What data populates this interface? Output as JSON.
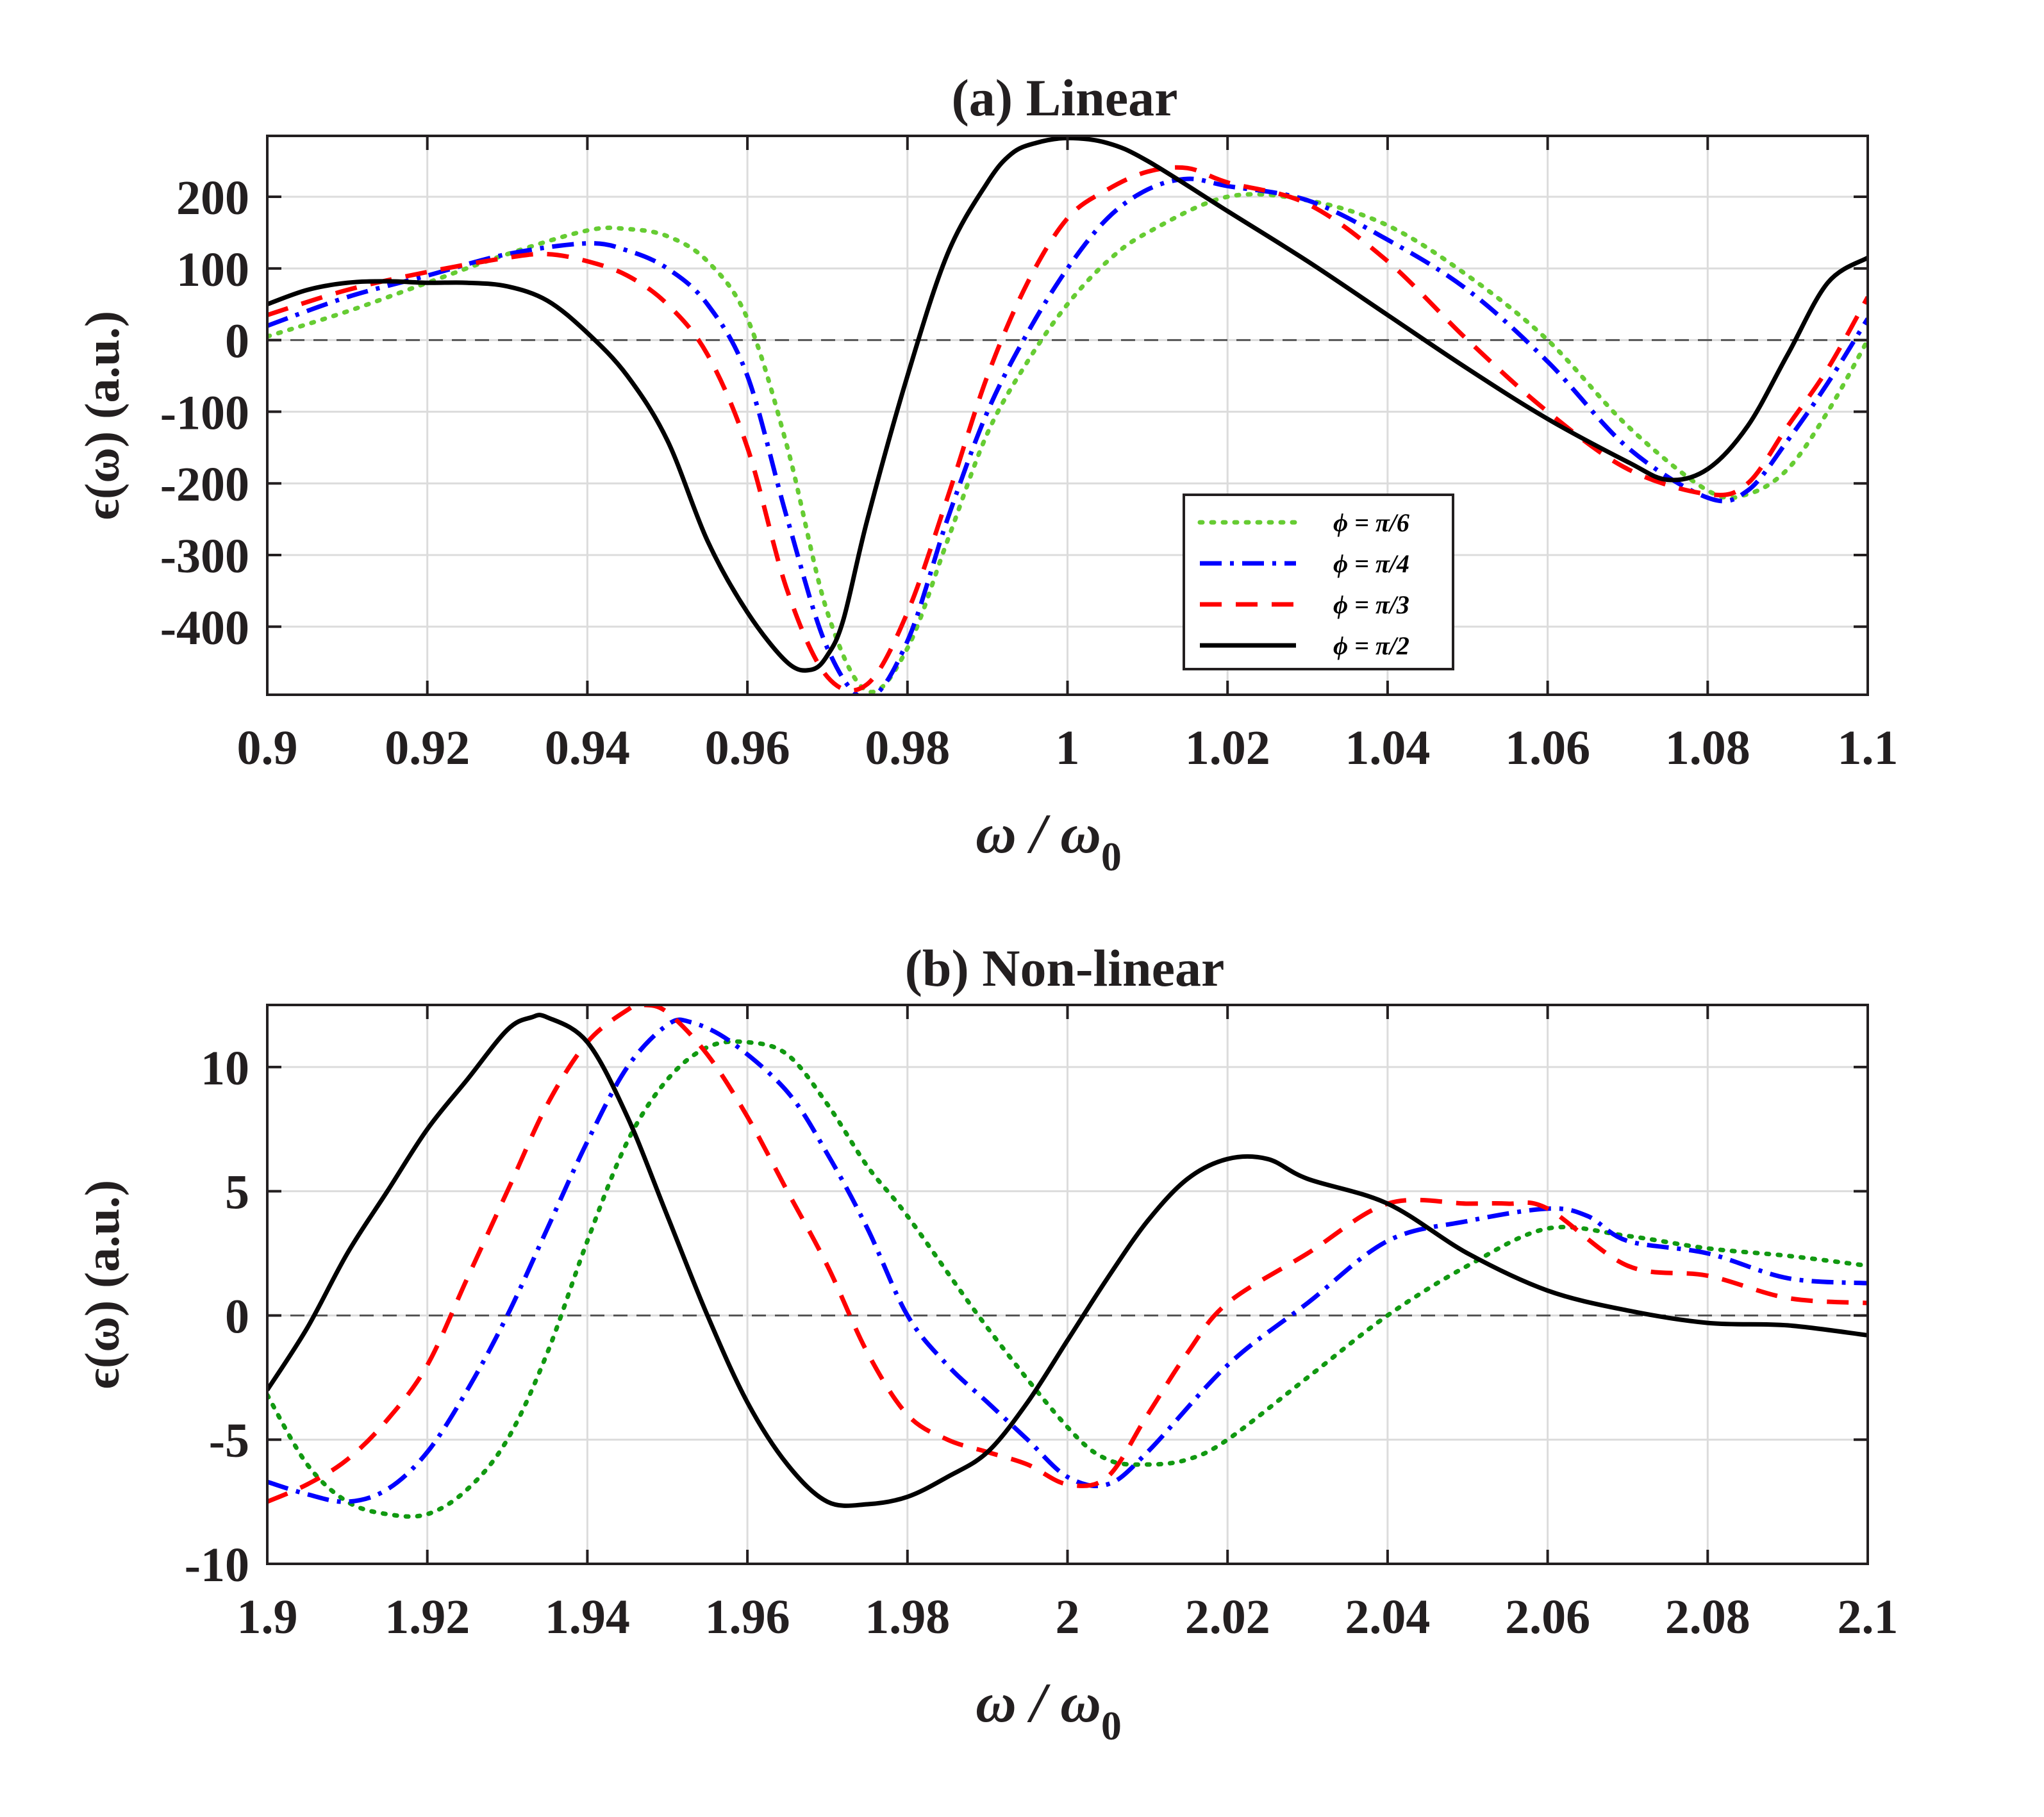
{
  "chart_data": [
    {
      "type": "line",
      "panel": "a",
      "title": "(a) Linear",
      "xlabel_main": "ω / ω",
      "xlabel_sub": "0",
      "ylabel": "ϵ(ω) (a.u.)",
      "xlim": [
        0.9,
        1.1
      ],
      "ylim": [
        -495,
        285
      ],
      "xticks": [
        0.9,
        0.92,
        0.94,
        0.96,
        0.98,
        1.0,
        1.02,
        1.04,
        1.06,
        1.08,
        1.1
      ],
      "xtick_labels": [
        "0.9",
        "0.92",
        "0.94",
        "0.96",
        "0.98",
        "1",
        "1.02",
        "1.04",
        "1.06",
        "1.08",
        "1.1"
      ],
      "yticks": [
        -400,
        -300,
        -200,
        -100,
        0,
        100,
        200
      ],
      "ytick_labels": [
        "-400",
        "-300",
        "-200",
        "-100",
        "0",
        "100",
        "200"
      ],
      "grid": true,
      "zero_line": true,
      "legend": {
        "position": "lower-right",
        "entries": [
          "ϕ = π/6",
          "ϕ = π/4",
          "ϕ = π/3",
          "ϕ = π/2"
        ]
      },
      "series": [
        {
          "name": "ϕ = π/6",
          "color": "#66cc33",
          "style": "dotted",
          "x": [
            0.9,
            0.91,
            0.92,
            0.93,
            0.94,
            0.945,
            0.95,
            0.955,
            0.96,
            0.965,
            0.97,
            0.975,
            0.98,
            0.985,
            0.99,
            0.995,
            1.0,
            1.005,
            1.01,
            1.02,
            1.03,
            1.04,
            1.05,
            1.06,
            1.07,
            1.08,
            1.085,
            1.09,
            1.095,
            1.1
          ],
          "y": [
            5,
            40,
            80,
            120,
            153,
            155,
            145,
            110,
            30,
            -150,
            -380,
            -490,
            -430,
            -280,
            -130,
            -30,
            50,
            110,
            150,
            200,
            195,
            160,
            90,
            0,
            -120,
            -210,
            -215,
            -180,
            -100,
            0
          ]
        },
        {
          "name": "ϕ = π/4",
          "color": "#0000ff",
          "style": "dashdot",
          "x": [
            0.9,
            0.91,
            0.92,
            0.93,
            0.94,
            0.945,
            0.95,
            0.955,
            0.96,
            0.965,
            0.97,
            0.975,
            0.98,
            0.985,
            0.99,
            0.995,
            1.0,
            1.005,
            1.01,
            1.015,
            1.02,
            1.03,
            1.04,
            1.05,
            1.06,
            1.07,
            1.08,
            1.085,
            1.09,
            1.095,
            1.1
          ],
          "y": [
            20,
            60,
            90,
            120,
            135,
            125,
            100,
            50,
            -50,
            -250,
            -430,
            -500,
            -420,
            -250,
            -100,
            10,
            100,
            170,
            210,
            225,
            215,
            195,
            140,
            70,
            -30,
            -150,
            -220,
            -210,
            -140,
            -60,
            30
          ]
        },
        {
          "name": "ϕ = π/3",
          "color": "#ff0000",
          "style": "dashed",
          "x": [
            0.9,
            0.91,
            0.92,
            0.93,
            0.935,
            0.94,
            0.945,
            0.95,
            0.955,
            0.96,
            0.965,
            0.97,
            0.975,
            0.98,
            0.985,
            0.99,
            0.995,
            1.0,
            1.005,
            1.01,
            1.015,
            1.02,
            1.03,
            1.04,
            1.05,
            1.06,
            1.07,
            1.08,
            1.085,
            1.09,
            1.095,
            1.1
          ],
          "y": [
            35,
            70,
            95,
            115,
            120,
            110,
            90,
            50,
            -20,
            -150,
            -350,
            -470,
            -480,
            -380,
            -220,
            -50,
            80,
            170,
            210,
            235,
            240,
            220,
            190,
            110,
            0,
            -100,
            -180,
            -215,
            -200,
            -120,
            -40,
            60
          ]
        },
        {
          "name": "ϕ = π/2",
          "color": "#000000",
          "style": "solid",
          "x": [
            0.9,
            0.905,
            0.91,
            0.915,
            0.92,
            0.925,
            0.93,
            0.935,
            0.94,
            0.945,
            0.95,
            0.955,
            0.96,
            0.965,
            0.968,
            0.97,
            0.972,
            0.975,
            0.98,
            0.985,
            0.99,
            0.993,
            0.996,
            1.0,
            1.005,
            1.01,
            1.02,
            1.03,
            1.04,
            1.05,
            1.06,
            1.07,
            1.075,
            1.08,
            1.085,
            1.09,
            1.095,
            1.1
          ],
          "y": [
            50,
            70,
            80,
            82,
            80,
            80,
            75,
            55,
            10,
            -50,
            -140,
            -280,
            -380,
            -450,
            -460,
            -440,
            -390,
            -250,
            -50,
            120,
            220,
            260,
            275,
            282,
            275,
            250,
            180,
            110,
            35,
            -40,
            -110,
            -170,
            -195,
            -180,
            -120,
            -20,
            80,
            115
          ]
        }
      ]
    },
    {
      "type": "line",
      "panel": "b",
      "title": "(b) Non-linear",
      "xlabel_main": "ω / ω",
      "xlabel_sub": "0",
      "ylabel": "ϵ(ω) (a.u.)",
      "xlim": [
        1.9,
        2.1
      ],
      "ylim": [
        -10,
        12.5
      ],
      "xticks": [
        1.9,
        1.92,
        1.94,
        1.96,
        1.98,
        2.0,
        2.02,
        2.04,
        2.06,
        2.08,
        2.1
      ],
      "xtick_labels": [
        "1.9",
        "1.92",
        "1.94",
        "1.96",
        "1.98",
        "2",
        "2.02",
        "2.04",
        "2.06",
        "2.08",
        "2.1"
      ],
      "yticks": [
        -10,
        -5,
        0,
        5,
        10
      ],
      "ytick_labels": [
        "-10",
        "-5",
        "0",
        "5",
        "10"
      ],
      "grid": true,
      "zero_line": true,
      "series": [
        {
          "name": "ϕ = π/6",
          "color": "#119911",
          "style": "dotted",
          "x": [
            1.9,
            1.905,
            1.91,
            1.915,
            1.92,
            1.925,
            1.93,
            1.935,
            1.94,
            1.945,
            1.95,
            1.955,
            1.96,
            1.965,
            1.97,
            1.975,
            1.98,
            1.99,
            2.0,
            2.005,
            2.01,
            2.015,
            2.02,
            2.03,
            2.04,
            2.05,
            2.06,
            2.07,
            2.08,
            2.09,
            2.1
          ],
          "y": [
            -3.2,
            -6.0,
            -7.5,
            -8.0,
            -8.0,
            -7.0,
            -5.0,
            -1.5,
            3.0,
            7.0,
            9.5,
            10.8,
            11.0,
            10.5,
            8.5,
            6.0,
            4.0,
            -0.5,
            -4.5,
            -5.8,
            -6.0,
            -5.8,
            -5.0,
            -2.5,
            0,
            2.0,
            3.5,
            3.2,
            2.7,
            2.4,
            2.0
          ]
        },
        {
          "name": "ϕ = π/4",
          "color": "#0000ff",
          "style": "dashdot",
          "x": [
            1.9,
            1.905,
            1.91,
            1.915,
            1.92,
            1.925,
            1.93,
            1.935,
            1.94,
            1.945,
            1.95,
            1.953,
            1.958,
            1.965,
            1.97,
            1.975,
            1.98,
            1.985,
            1.99,
            1.995,
            2.0,
            2.005,
            2.01,
            2.02,
            2.03,
            2.04,
            2.05,
            2.06,
            2.065,
            2.07,
            2.08,
            2.09,
            2.1
          ],
          "y": [
            -6.7,
            -7.2,
            -7.5,
            -7.0,
            -5.5,
            -3.0,
            0,
            3.5,
            7.0,
            10.0,
            11.7,
            11.8,
            11.0,
            9.0,
            6.5,
            3.5,
            0,
            -2.0,
            -3.5,
            -5.0,
            -6.5,
            -6.8,
            -5.5,
            -2.0,
            0.5,
            3.0,
            3.8,
            4.3,
            4.0,
            3.0,
            2.5,
            1.5,
            1.3
          ]
        },
        {
          "name": "ϕ = π/3",
          "color": "#ff0000",
          "style": "dashed",
          "x": [
            1.9,
            1.905,
            1.91,
            1.915,
            1.92,
            1.925,
            1.93,
            1.935,
            1.94,
            1.945,
            1.947,
            1.95,
            1.955,
            1.96,
            1.965,
            1.97,
            1.975,
            1.98,
            1.985,
            1.99,
            1.995,
            2.0,
            2.005,
            2.01,
            2.015,
            2.02,
            2.03,
            2.04,
            2.05,
            2.055,
            2.06,
            2.07,
            2.08,
            2.09,
            2.1
          ],
          "y": [
            -7.5,
            -6.8,
            -5.8,
            -4.2,
            -2.0,
            1.5,
            5.0,
            8.5,
            11.0,
            12.3,
            12.5,
            12.2,
            10.5,
            8.0,
            5.0,
            2.0,
            -1.5,
            -4.0,
            -5.0,
            -5.5,
            -6.0,
            -6.8,
            -6.5,
            -4.0,
            -1.5,
            0.5,
            2.5,
            4.5,
            4.5,
            4.5,
            4.3,
            2.0,
            1.6,
            0.7,
            0.5
          ]
        },
        {
          "name": "ϕ = π/2",
          "color": "#000000",
          "style": "solid",
          "x": [
            1.9,
            1.905,
            1.91,
            1.915,
            1.92,
            1.925,
            1.93,
            1.933,
            1.935,
            1.94,
            1.945,
            1.95,
            1.955,
            1.96,
            1.965,
            1.97,
            1.975,
            1.98,
            1.985,
            1.99,
            1.995,
            2.0,
            2.005,
            2.01,
            2.015,
            2.02,
            2.025,
            2.03,
            2.04,
            2.05,
            2.06,
            2.07,
            2.08,
            2.09,
            2.1
          ],
          "y": [
            -3.0,
            -0.5,
            2.5,
            5.0,
            7.5,
            9.5,
            11.5,
            12.0,
            12.0,
            11.0,
            8.0,
            4.0,
            0,
            -3.5,
            -6.0,
            -7.5,
            -7.6,
            -7.3,
            -6.5,
            -5.5,
            -3.5,
            -1.0,
            1.5,
            3.8,
            5.5,
            6.3,
            6.3,
            5.5,
            4.5,
            2.5,
            1.0,
            0.2,
            -0.3,
            -0.4,
            -0.8
          ]
        }
      ]
    }
  ]
}
